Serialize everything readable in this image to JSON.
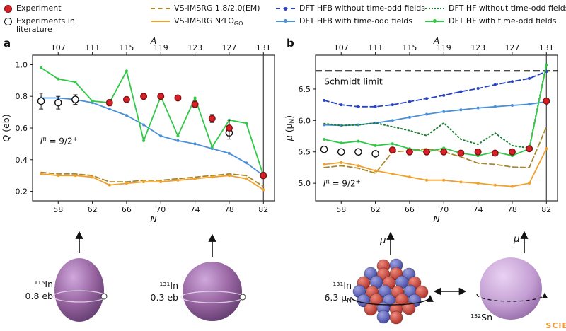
{
  "watermark": "SCIE",
  "colors": {
    "experiment": "#d61f26",
    "experiment_edge": "#7e1113",
    "vs_em": "#a8862a",
    "vs_n2lo": "#f0a02e",
    "hfb_dashed": "#2743c4",
    "hfb_solid": "#4a90d9",
    "hf_dotted": "#1e7d32",
    "hf_solid": "#2fc946",
    "axis": "#1a1a1a"
  },
  "legend": {
    "columns": [
      {
        "items": [
          {
            "swatch": "circle-filled",
            "label": "Experiment"
          },
          {
            "swatch": "circle-open",
            "label": "Experiments in literature",
            "wrap": 110
          }
        ]
      },
      {
        "items": [
          {
            "swatch": "line",
            "style": "dashed",
            "color": "vs_em",
            "label": "VS-IMSRG 1.8/2.0(EM)"
          },
          {
            "swatch": "line",
            "style": "solid",
            "color": "vs_n2lo",
            "label": "VS-IMSRG N²LO",
            "label_sub": "GO"
          }
        ]
      },
      {
        "items": [
          {
            "swatch": "line",
            "style": "dashed",
            "dot": true,
            "color": "hfb_dashed",
            "label": "DFT HFB without time-odd fields"
          },
          {
            "swatch": "line",
            "style": "solid",
            "dot": true,
            "color": "hfb_solid",
            "label": "DFT HFB with time-odd fields"
          }
        ]
      },
      {
        "items": [
          {
            "swatch": "line",
            "style": "dotted",
            "color": "hf_dotted",
            "label": "DFT HF without time-odd fields"
          },
          {
            "swatch": "line",
            "style": "solid",
            "dot": true,
            "color": "hf_solid",
            "label": "DFT HF with time-odd fields"
          }
        ]
      }
    ]
  },
  "chart_data": [
    {
      "type": "line",
      "panel_label": "a",
      "xlabel_parts": [
        {
          "t": "N",
          "i": 1
        }
      ],
      "top_label_parts": [
        {
          "t": "A",
          "i": 1
        }
      ],
      "ylabel_parts": [
        {
          "t": "Q",
          "i": 1
        },
        {
          "t": " (eb)"
        }
      ],
      "xlim": [
        55,
        83.3
      ],
      "ylim": [
        0.14,
        1.06
      ],
      "xticks": [
        58,
        62,
        66,
        70,
        74,
        78,
        82
      ],
      "top_ticks": [
        {
          "label": "107",
          "x": 58
        },
        {
          "label": "111",
          "x": 62
        },
        {
          "label": "115",
          "x": 66
        },
        {
          "label": "119",
          "x": 70
        },
        {
          "label": "123",
          "x": 74
        },
        {
          "label": "127",
          "x": 78
        },
        {
          "label": "131",
          "x": 82
        }
      ],
      "yticks": [
        "0.2",
        "0.4",
        "0.6",
        "0.8",
        "1.0"
      ],
      "vline": 82,
      "annotation": {
        "x": 55.9,
        "y": 0.5,
        "parts": [
          {
            "t": "I",
            "i": 1
          },
          {
            "t": "π",
            "sup": 1
          },
          {
            "t": " = 9/2"
          },
          {
            "t": "+",
            "sup": 1
          }
        ]
      },
      "x": [
        56,
        58,
        60,
        62,
        64,
        66,
        68,
        70,
        72,
        74,
        76,
        78,
        80,
        82
      ],
      "series": [
        {
          "name": "VS-IMSRG 1.8/2.0(EM)",
          "color": "vs_em",
          "style": "dashed",
          "values": [
            0.32,
            0.31,
            0.31,
            0.3,
            0.26,
            0.26,
            0.27,
            0.27,
            0.28,
            0.29,
            0.3,
            0.31,
            0.3,
            0.23
          ]
        },
        {
          "name": "VS-IMSRG N2LO_GO",
          "color": "vs_n2lo",
          "style": "solid",
          "marker": true,
          "values": [
            0.31,
            0.3,
            0.3,
            0.29,
            0.24,
            0.25,
            0.26,
            0.26,
            0.27,
            0.28,
            0.29,
            0.3,
            0.28,
            0.21
          ]
        },
        {
          "name": "DFT HFB with time-odd fields",
          "color": "hfb_solid",
          "style": "solid",
          "marker": true,
          "values": [
            0.79,
            0.79,
            0.78,
            0.76,
            0.72,
            0.68,
            0.62,
            0.55,
            0.52,
            0.5,
            0.47,
            0.44,
            0.38,
            0.3
          ]
        },
        {
          "name": "DFT HF with time-odd fields",
          "color": "hf_solid",
          "style": "solid",
          "marker": true,
          "values": [
            0.98,
            0.91,
            0.89,
            0.77,
            0.76,
            0.96,
            0.52,
            0.8,
            0.55,
            0.79,
            0.48,
            0.65,
            0.63,
            0.3
          ]
        }
      ],
      "scatter": [
        {
          "name": "Experiments in literature",
          "open": true,
          "x": [
            56,
            58,
            60,
            78
          ],
          "y": [
            0.77,
            0.76,
            0.78,
            0.57
          ],
          "err": [
            0.05,
            0.04,
            0.03,
            0.04
          ]
        },
        {
          "name": "Experiment",
          "open": false,
          "x": [
            64,
            66,
            68,
            70,
            72,
            74,
            76,
            78,
            82
          ],
          "y": [
            0.76,
            0.78,
            0.8,
            0.8,
            0.79,
            0.75,
            0.66,
            0.6,
            0.3
          ],
          "err": [
            0.02,
            0.015,
            0.015,
            0.015,
            0.015,
            0.02,
            0.025,
            0.05,
            0.02
          ]
        }
      ]
    },
    {
      "type": "line",
      "panel_label": "b",
      "xlabel_parts": [
        {
          "t": "N",
          "i": 1
        }
      ],
      "top_label_parts": [
        {
          "t": "A",
          "i": 1
        }
      ],
      "ylabel_parts": [
        {
          "t": "μ",
          "i": 1
        },
        {
          "t": " (μ"
        },
        {
          "t": "N",
          "sub": 1
        },
        {
          "t": ")"
        }
      ],
      "xlim": [
        55,
        83.3
      ],
      "ylim": [
        4.72,
        7.04
      ],
      "xticks": [
        58,
        62,
        66,
        70,
        74,
        78,
        82
      ],
      "top_ticks": [
        {
          "label": "107",
          "x": 58
        },
        {
          "label": "111",
          "x": 62
        },
        {
          "label": "115",
          "x": 66
        },
        {
          "label": "119",
          "x": 70
        },
        {
          "label": "123",
          "x": 74
        },
        {
          "label": "127",
          "x": 78
        },
        {
          "label": "131",
          "x": 82
        }
      ],
      "yticks": [
        "5.0",
        "5.5",
        "6.0",
        "6.5"
      ],
      "vline": 82,
      "hline": {
        "y": 6.79,
        "label": "Schmidt limit",
        "label_x": 56,
        "label_y": 6.57
      },
      "annotation": {
        "x": 55.9,
        "y": 4.95,
        "parts": [
          {
            "t": "I",
            "i": 1
          },
          {
            "t": "π",
            "sup": 1
          },
          {
            "t": " = 9/2"
          },
          {
            "t": "+",
            "sup": 1
          }
        ]
      },
      "x": [
        56,
        58,
        60,
        62,
        64,
        66,
        68,
        70,
        72,
        74,
        76,
        78,
        80,
        82
      ],
      "series": [
        {
          "name": "VS-IMSRG 1.8/2.0(EM)",
          "color": "vs_em",
          "style": "dashed",
          "values": [
            5.25,
            5.28,
            5.24,
            5.16,
            5.5,
            5.52,
            5.55,
            5.5,
            5.42,
            5.32,
            5.3,
            5.26,
            5.25,
            5.9
          ]
        },
        {
          "name": "VS-IMSRG N2LO_GO",
          "color": "vs_n2lo",
          "style": "solid",
          "marker": true,
          "values": [
            5.3,
            5.33,
            5.28,
            5.2,
            5.15,
            5.1,
            5.05,
            5.05,
            5.02,
            5.0,
            4.97,
            4.95,
            5.0,
            5.55
          ]
        },
        {
          "name": "DFT HFB without time-odd fields",
          "color": "hfb_dashed",
          "style": "dashed",
          "marker": true,
          "values": [
            6.32,
            6.25,
            6.22,
            6.22,
            6.25,
            6.3,
            6.35,
            6.4,
            6.46,
            6.51,
            6.57,
            6.62,
            6.67,
            6.78
          ]
        },
        {
          "name": "DFT HFB with time-odd fields",
          "color": "hfb_solid",
          "style": "solid",
          "marker": true,
          "values": [
            5.93,
            5.92,
            5.93,
            5.96,
            6.0,
            6.05,
            6.1,
            6.14,
            6.17,
            6.2,
            6.22,
            6.24,
            6.26,
            6.3
          ]
        },
        {
          "name": "DFT HF without time-odd fields",
          "color": "hf_dotted",
          "style": "dotted",
          "values": [
            5.95,
            5.92,
            5.93,
            5.96,
            5.9,
            5.84,
            5.76,
            5.96,
            5.7,
            5.62,
            5.8,
            5.6,
            5.56,
            6.9
          ]
        },
        {
          "name": "DFT HF with time-odd fields",
          "color": "hf_solid",
          "style": "solid",
          "marker": true,
          "values": [
            5.7,
            5.64,
            5.67,
            5.6,
            5.63,
            5.55,
            5.5,
            5.56,
            5.48,
            5.44,
            5.5,
            5.44,
            5.55,
            6.88
          ]
        }
      ],
      "scatter": [
        {
          "name": "Experiments in literature",
          "open": true,
          "x": [
            56,
            58,
            60,
            62
          ],
          "y": [
            5.54,
            5.5,
            5.5,
            5.47
          ],
          "err": [
            0.04,
            0.04,
            0.04,
            0.04
          ]
        },
        {
          "name": "Experiment",
          "open": false,
          "x": [
            64,
            66,
            68,
            70,
            72,
            74,
            76,
            78,
            80,
            82
          ],
          "y": [
            5.53,
            5.5,
            5.5,
            5.5,
            5.48,
            5.5,
            5.48,
            5.5,
            5.55,
            6.31
          ],
          "err": [
            0.03,
            0.03,
            0.03,
            0.03,
            0.03,
            0.03,
            0.03,
            0.03,
            0.03,
            0.03
          ]
        }
      ]
    }
  ],
  "bottom": {
    "mu_label": "μ",
    "deformed": {
      "isotope": "¹¹⁵In",
      "value": "0.8 eb"
    },
    "spherical": {
      "isotope": "¹³¹In",
      "value": "0.3 eb"
    },
    "nucleus": {
      "isotope": "¹³¹In",
      "value_main": "6.3 μ",
      "value_sub": "N"
    },
    "reference": {
      "isotope": "¹³²Sn"
    }
  }
}
